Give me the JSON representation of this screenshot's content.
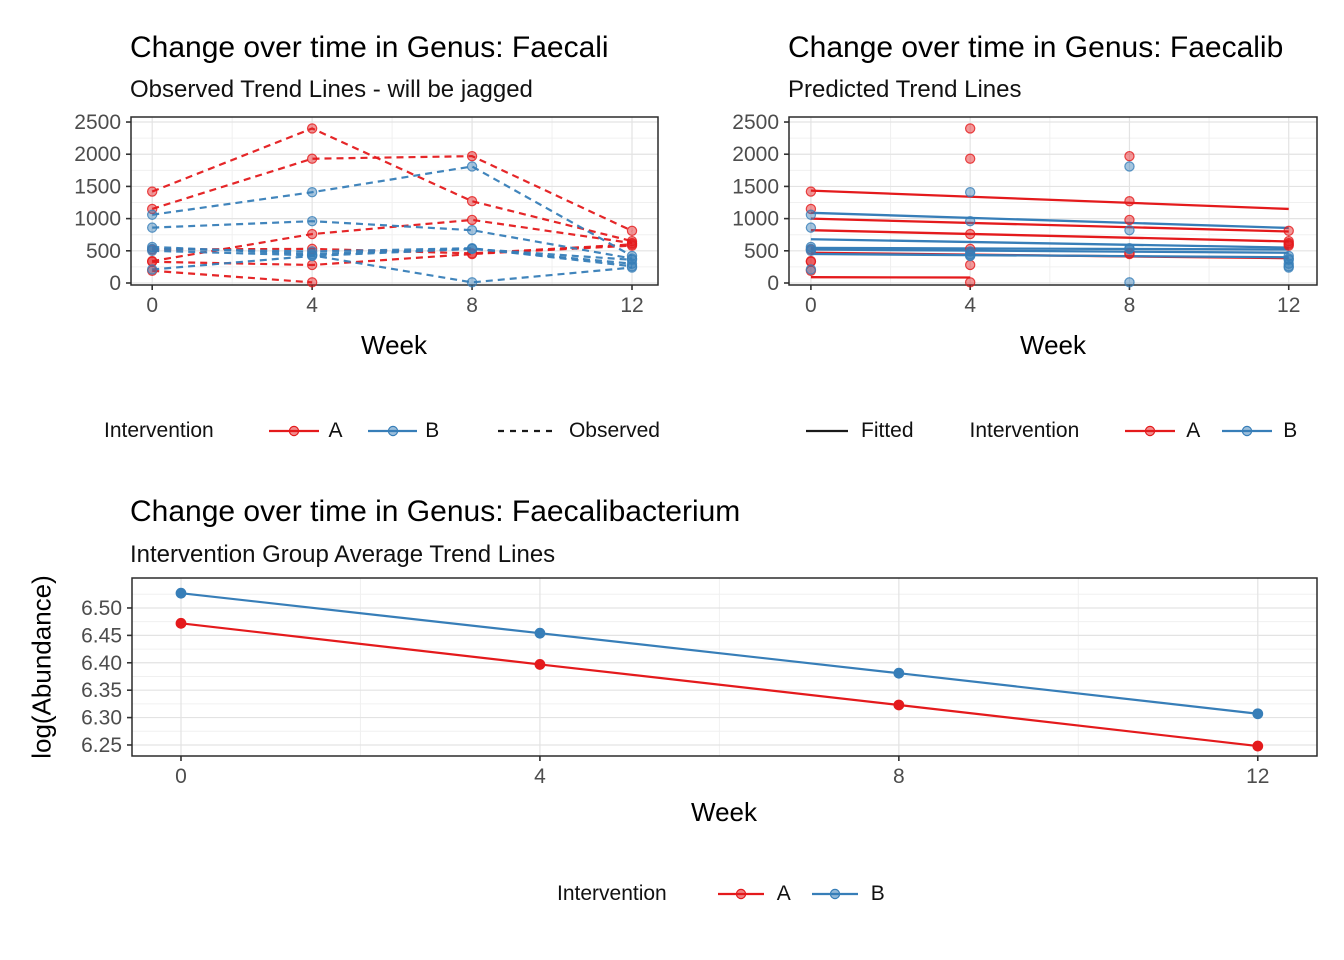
{
  "colors": {
    "intervention_a": "#E41A1C",
    "intervention_b": "#377EB8",
    "axis_text": "#4D4D4D",
    "grid_major": "#E3E3E3",
    "grid_minor": "#F0F0F0",
    "panel_border": "#2B2B2B",
    "linetype_key": "#1A1A1A"
  },
  "chart_data": [
    {
      "id": "observed",
      "type": "line",
      "title": "Change over time in Genus: Faecali",
      "subtitle": "Observed Trend Lines - will be jagged",
      "xlabel": "Week",
      "x_tick_labels": [
        "0",
        "4",
        "8",
        "12"
      ],
      "x_tick_values": [
        0,
        4,
        8,
        12
      ],
      "y_tick_labels": [
        "0",
        "500",
        "1000",
        "1500",
        "2000",
        "2500"
      ],
      "y_tick_values": [
        0,
        500,
        1000,
        1500,
        2000,
        2500
      ],
      "xlim": [
        -0.53,
        12.65
      ],
      "ylim": [
        -31,
        2578
      ],
      "grid": true,
      "legend_position": "bottom",
      "line_style": "dashed",
      "series": [
        {
          "subject": "A1",
          "group": "A",
          "x": [
            0,
            4,
            8,
            12
          ],
          "y": [
            1420,
            2400,
            1270,
            650
          ]
        },
        {
          "subject": "A2",
          "group": "A",
          "x": [
            0,
            4,
            8,
            12
          ],
          "y": [
            1150,
            1930,
            1970,
            810
          ]
        },
        {
          "subject": "A3",
          "group": "A",
          "x": [
            0,
            4,
            8,
            12
          ],
          "y": [
            340,
            760,
            980,
            620
          ]
        },
        {
          "subject": "A4",
          "group": "A",
          "x": [
            0,
            4,
            8,
            12
          ],
          "y": [
            520,
            530,
            460,
            600
          ]
        },
        {
          "subject": "A5",
          "group": "A",
          "x": [
            0,
            4,
            8,
            12
          ],
          "y": [
            330,
            280,
            450,
            580
          ]
        },
        {
          "subject": "A6",
          "group": "A",
          "x": [
            0,
            4
          ],
          "y": [
            190,
            10
          ]
        },
        {
          "subject": "B1",
          "group": "B",
          "x": [
            0,
            4,
            8,
            12
          ],
          "y": [
            1060,
            1410,
            1810,
            420
          ]
        },
        {
          "subject": "B2",
          "group": "B",
          "x": [
            0,
            4,
            8,
            12
          ],
          "y": [
            860,
            960,
            820,
            380
          ]
        },
        {
          "subject": "B3",
          "group": "B",
          "x": [
            0,
            4,
            8,
            12
          ],
          "y": [
            560,
            450,
            530,
            360
          ]
        },
        {
          "subject": "B4",
          "group": "B",
          "x": [
            0,
            4,
            8,
            12
          ],
          "y": [
            530,
            490,
            540,
            260
          ]
        },
        {
          "subject": "B5",
          "group": "B",
          "x": [
            0,
            4,
            8,
            12
          ],
          "y": [
            500,
            430,
            10,
            240
          ]
        },
        {
          "subject": "B6",
          "group": "B",
          "x": [
            0,
            4,
            8,
            12
          ],
          "y": [
            210,
            420,
            530,
            300
          ]
        }
      ],
      "legend": {
        "title": "Intervention",
        "groups": [
          {
            "label": "A"
          },
          {
            "label": "B"
          }
        ],
        "linetype": {
          "label": "Observed",
          "style": "dashed"
        }
      }
    },
    {
      "id": "predicted",
      "type": "scatter+fitted-line",
      "title": "Change over time in Genus: Faecalib",
      "subtitle": "Predicted Trend Lines",
      "xlabel": "Week",
      "x_tick_labels": [
        "0",
        "4",
        "8",
        "12"
      ],
      "x_tick_values": [
        0,
        4,
        8,
        12
      ],
      "y_tick_labels": [
        "0",
        "500",
        "1000",
        "1500",
        "2000",
        "2500"
      ],
      "y_tick_values": [
        0,
        500,
        1000,
        1500,
        2000,
        2500
      ],
      "xlim": [
        -0.55,
        12.71
      ],
      "ylim": [
        -31,
        2578
      ],
      "grid": true,
      "legend_position": "bottom",
      "series": [
        {
          "subject": "A1",
          "group": "A",
          "x": [
            0,
            4,
            8,
            12
          ],
          "y": [
            1420,
            2400,
            1270,
            650
          ]
        },
        {
          "subject": "A2",
          "group": "A",
          "x": [
            0,
            4,
            8,
            12
          ],
          "y": [
            1150,
            1930,
            1970,
            810
          ]
        },
        {
          "subject": "A3",
          "group": "A",
          "x": [
            0,
            4,
            8,
            12
          ],
          "y": [
            340,
            760,
            980,
            620
          ]
        },
        {
          "subject": "A4",
          "group": "A",
          "x": [
            0,
            4,
            8,
            12
          ],
          "y": [
            520,
            530,
            460,
            600
          ]
        },
        {
          "subject": "A5",
          "group": "A",
          "x": [
            0,
            4,
            8,
            12
          ],
          "y": [
            330,
            280,
            450,
            580
          ]
        },
        {
          "subject": "A6",
          "group": "A",
          "x": [
            0,
            4
          ],
          "y": [
            190,
            10
          ]
        },
        {
          "subject": "B1",
          "group": "B",
          "x": [
            0,
            4,
            8,
            12
          ],
          "y": [
            1060,
            1410,
            1810,
            420
          ]
        },
        {
          "subject": "B2",
          "group": "B",
          "x": [
            0,
            4,
            8,
            12
          ],
          "y": [
            860,
            960,
            820,
            380
          ]
        },
        {
          "subject": "B3",
          "group": "B",
          "x": [
            0,
            4,
            8,
            12
          ],
          "y": [
            560,
            450,
            530,
            360
          ]
        },
        {
          "subject": "B4",
          "group": "B",
          "x": [
            0,
            4,
            8,
            12
          ],
          "y": [
            530,
            490,
            540,
            260
          ]
        },
        {
          "subject": "B5",
          "group": "B",
          "x": [
            0,
            4,
            8,
            12
          ],
          "y": [
            500,
            430,
            10,
            240
          ]
        },
        {
          "subject": "B6",
          "group": "B",
          "x": [
            0,
            4,
            8,
            12
          ],
          "y": [
            210,
            420,
            530,
            300
          ]
        }
      ],
      "fitted_lines": [
        {
          "group": "A",
          "x": [
            0,
            12
          ],
          "y": [
            1435,
            1150
          ]
        },
        {
          "group": "A",
          "x": [
            0,
            12
          ],
          "y": [
            1000,
            800
          ]
        },
        {
          "group": "A",
          "x": [
            0,
            12
          ],
          "y": [
            820,
            645
          ]
        },
        {
          "group": "A",
          "x": [
            0,
            12
          ],
          "y": [
            470,
            385
          ]
        },
        {
          "group": "A",
          "x": [
            0,
            4
          ],
          "y": [
            90,
            85
          ]
        },
        {
          "group": "B",
          "x": [
            0,
            12
          ],
          "y": [
            1090,
            855
          ]
        },
        {
          "group": "B",
          "x": [
            0,
            12
          ],
          "y": [
            680,
            550
          ]
        },
        {
          "group": "B",
          "x": [
            0,
            12
          ],
          "y": [
            545,
            520
          ]
        },
        {
          "group": "B",
          "x": [
            0,
            12
          ],
          "y": [
            520,
            470
          ]
        },
        {
          "group": "B",
          "x": [
            0,
            12
          ],
          "y": [
            450,
            400
          ]
        }
      ],
      "legend": {
        "linetype": {
          "label": "Fitted",
          "style": "solid"
        },
        "title": "Intervention",
        "groups": [
          {
            "label": "A"
          },
          {
            "label": "B"
          }
        ]
      }
    },
    {
      "id": "average",
      "type": "line",
      "title": "Change over time in Genus: Faecalibacterium",
      "subtitle": "Intervention Group Average Trend Lines",
      "xlabel": "Week",
      "ylabel": "log(Abundance)",
      "x_tick_labels": [
        "0",
        "4",
        "8",
        "12"
      ],
      "x_tick_values": [
        0,
        4,
        8,
        12
      ],
      "y_tick_labels": [
        "6.25",
        "6.30",
        "6.35",
        "6.40",
        "6.45",
        "6.50"
      ],
      "y_tick_values": [
        6.25,
        6.3,
        6.35,
        6.4,
        6.45,
        6.5
      ],
      "xlim": [
        -0.546,
        12.66
      ],
      "ylim": [
        6.2299,
        6.5547
      ],
      "grid": true,
      "legend_position": "bottom",
      "line_style": "solid",
      "series": [
        {
          "group": "A",
          "x": [
            0,
            4,
            8,
            12
          ],
          "y": [
            6.472,
            6.397,
            6.323,
            6.248
          ]
        },
        {
          "group": "B",
          "x": [
            0,
            4,
            8,
            12
          ],
          "y": [
            6.527,
            6.454,
            6.381,
            6.307
          ]
        }
      ],
      "legend": {
        "title": "Intervention",
        "groups": [
          {
            "label": "A"
          },
          {
            "label": "B"
          }
        ]
      }
    }
  ]
}
